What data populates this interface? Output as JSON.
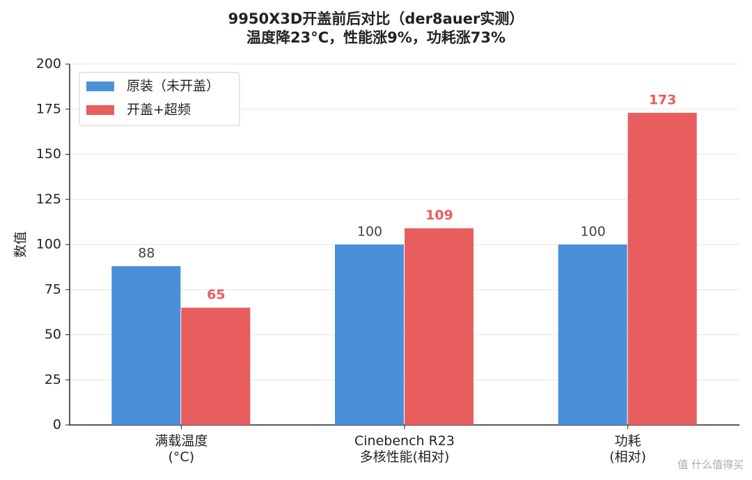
{
  "chart_data": {
    "type": "bar",
    "title": "9950X3D开盖前后对比（der8auer实测）\n温度降23°C，性能涨9%，功耗涨73%",
    "y_label": "数值",
    "categories": [
      "满载温度\n(°C)",
      "Cinebench R23\n多核性能(相对)",
      "功耗\n(相对)"
    ],
    "series": [
      {
        "name": "原装（未开盖）",
        "color": "#4a90d9",
        "values": [
          88,
          100,
          100
        ]
      },
      {
        "name": "开盖+超频",
        "color": "#e85d5d",
        "values": [
          65,
          109,
          173
        ]
      }
    ],
    "ylim": [
      0,
      200
    ],
    "yticks": [
      0,
      25,
      50,
      75,
      100,
      125,
      150,
      175,
      200
    ],
    "grid": true,
    "legend": "upper left"
  },
  "watermark": "值 什么值得买"
}
